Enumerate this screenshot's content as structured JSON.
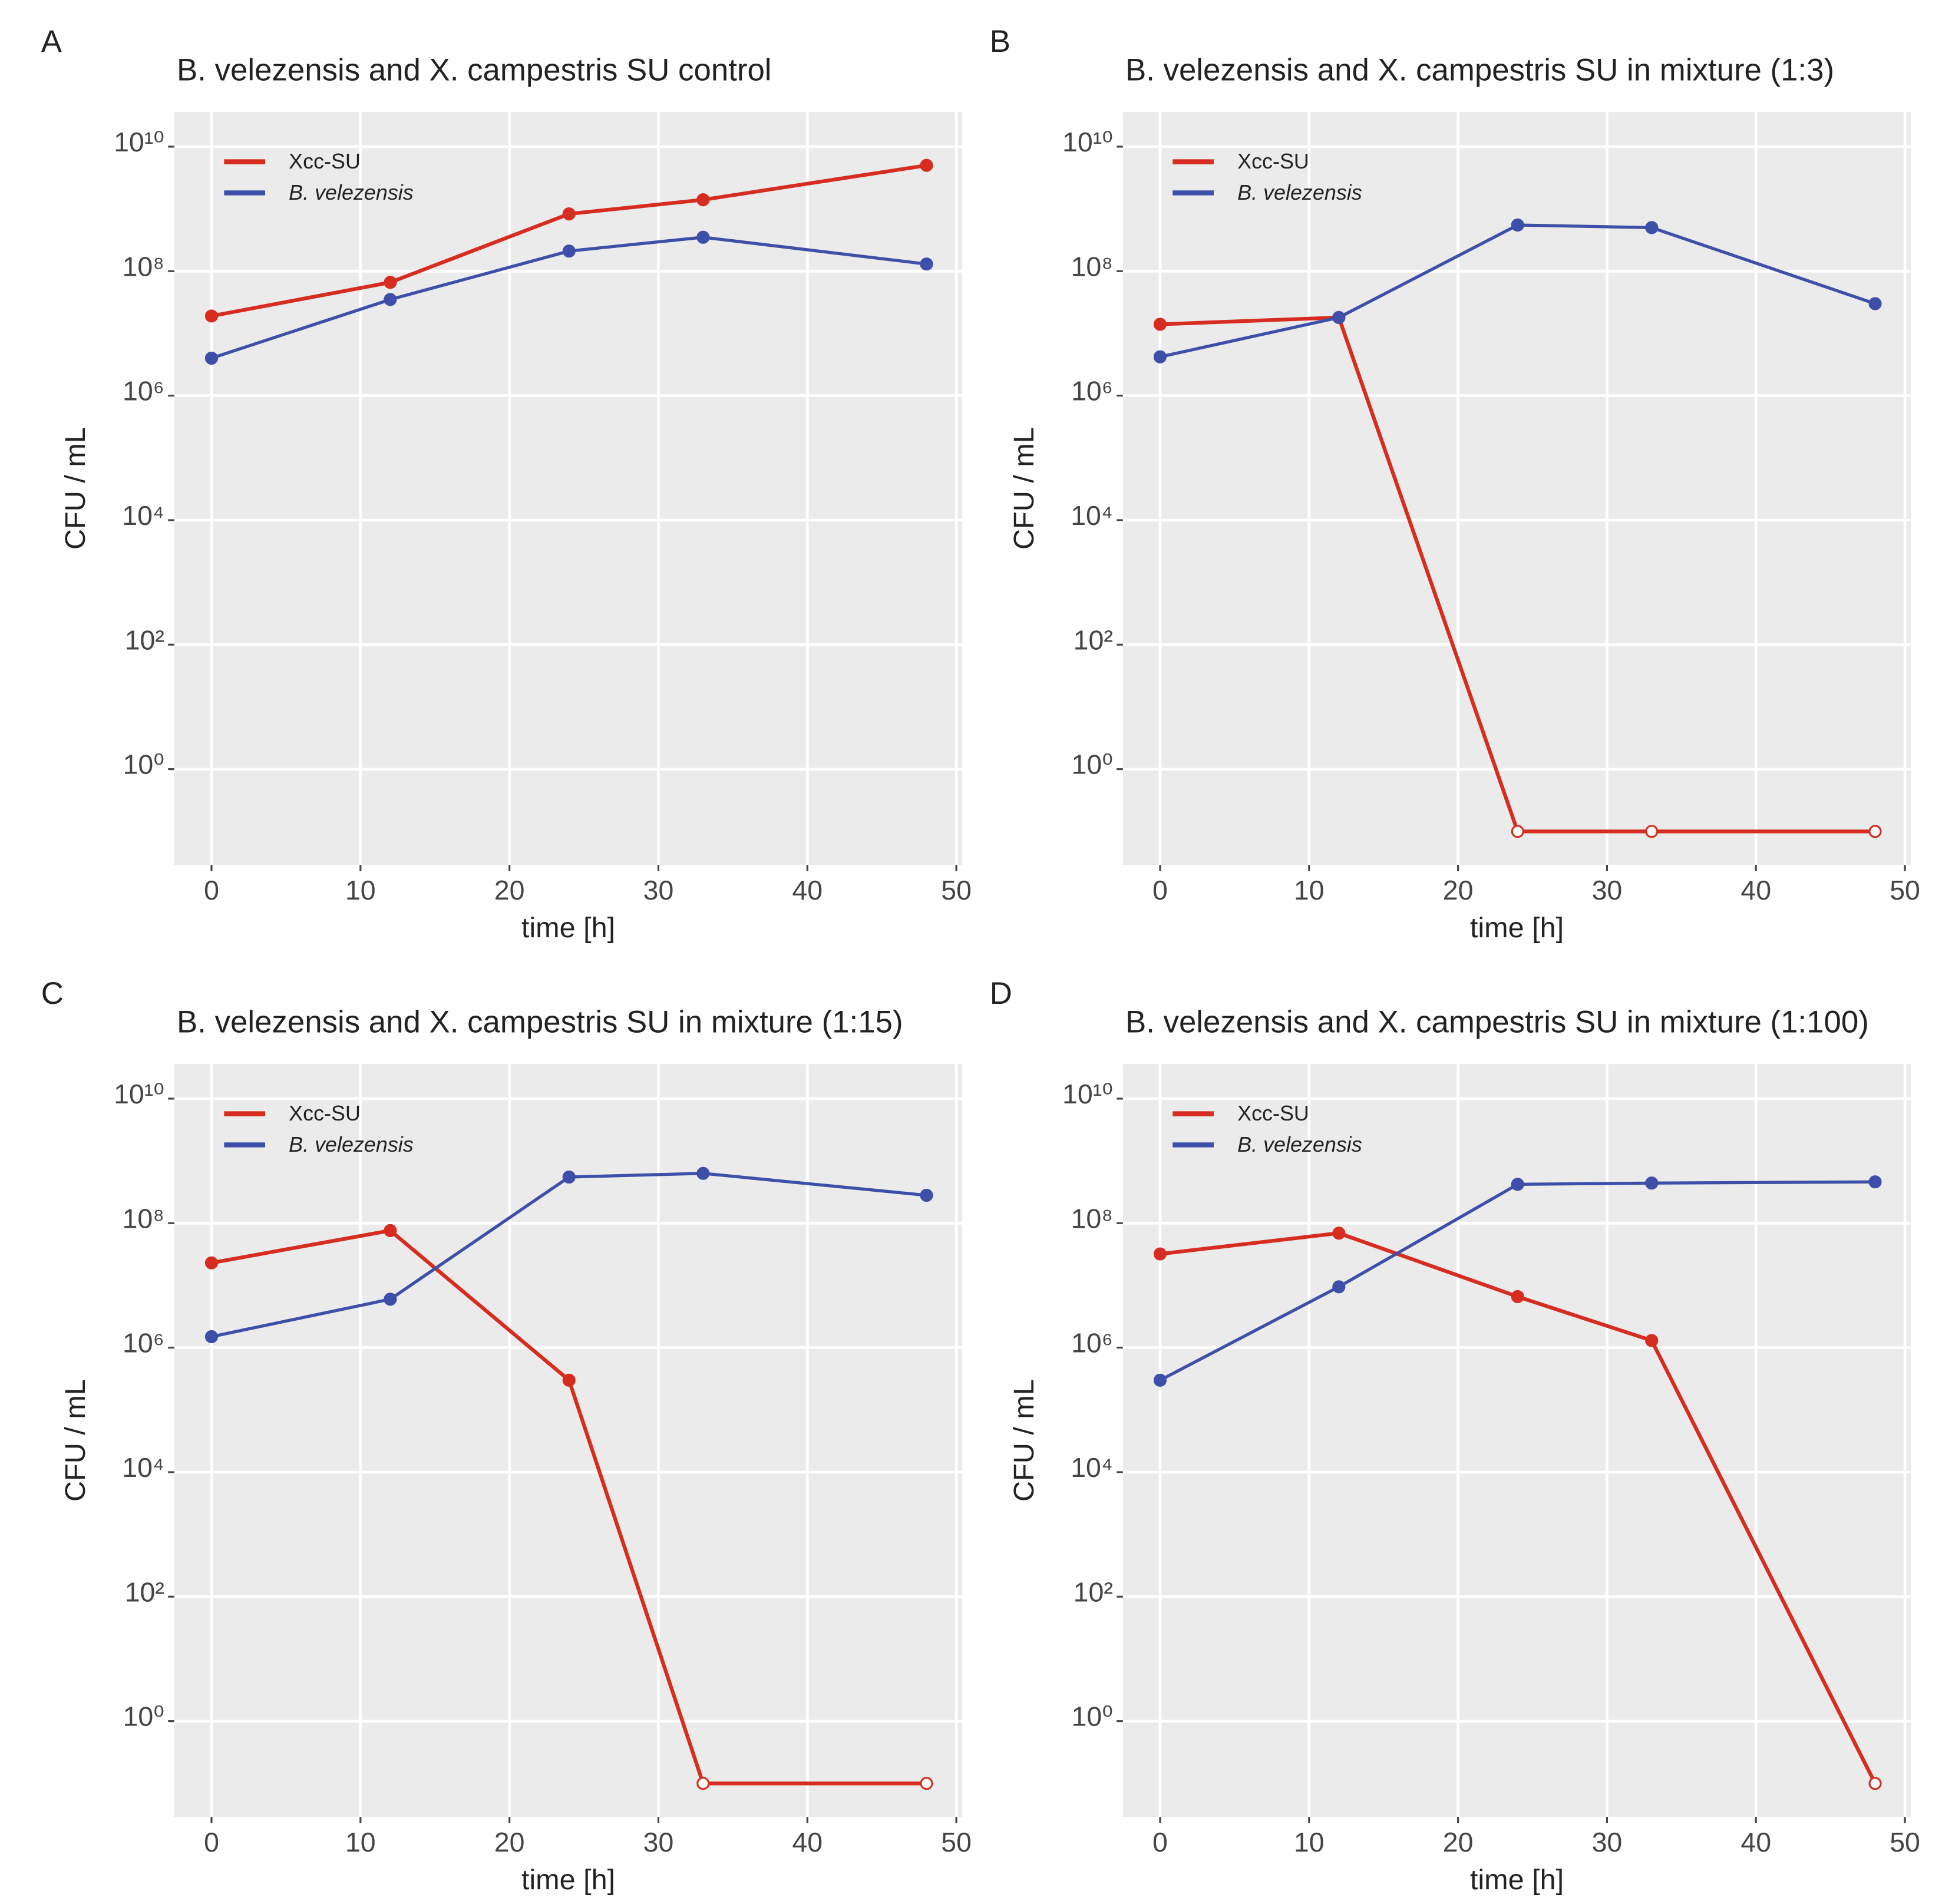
{
  "chart_data": [
    {
      "type": "line",
      "panel": "A",
      "title": "B. velezensis and X. campestris SU control",
      "x_label": "time [h]",
      "y_label": "CFU / mL",
      "x": [
        0,
        12,
        24,
        33,
        48
      ],
      "series": [
        {
          "name": "Xcc-SU",
          "color": "#d62d20",
          "values": [
            19000000,
            66000000,
            830000000,
            1400000000,
            5000000000
          ]
        },
        {
          "name": "B. velezensis",
          "color": "#3d4fa8",
          "values": [
            4000000,
            35000000,
            210000000,
            350000000,
            130000000
          ]
        }
      ],
      "xlim": [
        -2.5,
        50.4
      ],
      "xticks": [
        0,
        10,
        20,
        30,
        40,
        50
      ],
      "ylim": [
        0.029,
        36000000000
      ],
      "y_scale": "log",
      "yticks": [
        {
          "value": 1,
          "label": "10⁰"
        },
        {
          "value": 100,
          "label": "10²"
        },
        {
          "value": 10000,
          "label": "10⁴"
        },
        {
          "value": 1000000,
          "label": "10⁶"
        },
        {
          "value": 100000000,
          "label": "10⁸"
        },
        {
          "value": 10000000000,
          "label": "10¹⁰"
        }
      ],
      "grid": true,
      "legend": "top-left"
    },
    {
      "type": "line",
      "panel": "B",
      "title": "B. velezensis and X. campestris SU in mixture (1:3)",
      "x_label": "time [h]",
      "y_label": "CFU / mL",
      "x": [
        0,
        12,
        24,
        33,
        48
      ],
      "series": [
        {
          "name": "Xcc-SU",
          "color": "#d62d20",
          "values": [
            14000000,
            18000000,
            0.1,
            0.1,
            0.1
          ]
        },
        {
          "name": "B. velezensis",
          "color": "#3d4fa8",
          "values": [
            4200000,
            18000000,
            550000000,
            500000000,
            30000000
          ]
        }
      ],
      "xlim": [
        -2.5,
        50.4
      ],
      "xticks": [
        0,
        10,
        20,
        30,
        40,
        50
      ],
      "ylim": [
        0.029,
        36000000000
      ],
      "y_scale": "log",
      "yticks": [
        {
          "value": 1,
          "label": "10⁰"
        },
        {
          "value": 100,
          "label": "10²"
        },
        {
          "value": 10000,
          "label": "10⁴"
        },
        {
          "value": 1000000,
          "label": "10⁶"
        },
        {
          "value": 100000000,
          "label": "10⁸"
        },
        {
          "value": 10000000000,
          "label": "10¹⁰"
        }
      ],
      "grid": true,
      "legend": "top-left"
    },
    {
      "type": "line",
      "panel": "C",
      "title": "B. velezensis and X. campestris SU in mixture (1:15)",
      "x_label": "time [h]",
      "y_label": "CFU / mL",
      "x": [
        0,
        12,
        24,
        33,
        48
      ],
      "series": [
        {
          "name": "Xcc-SU",
          "color": "#d62d20",
          "values": [
            23000000,
            76000000,
            300000,
            0.1,
            0.1
          ]
        },
        {
          "name": "B. velezensis",
          "color": "#3d4fa8",
          "values": [
            1500000,
            6000000,
            550000000,
            630000000,
            280000000
          ]
        }
      ],
      "xlim": [
        -2.5,
        50.4
      ],
      "xticks": [
        0,
        10,
        20,
        30,
        40,
        50
      ],
      "ylim": [
        0.029,
        36000000000
      ],
      "y_scale": "log",
      "yticks": [
        {
          "value": 1,
          "label": "10⁰"
        },
        {
          "value": 100,
          "label": "10²"
        },
        {
          "value": 10000,
          "label": "10⁴"
        },
        {
          "value": 1000000,
          "label": "10⁶"
        },
        {
          "value": 100000000,
          "label": "10⁸"
        },
        {
          "value": 10000000000,
          "label": "10¹⁰"
        }
      ],
      "grid": true,
      "legend": "top-left"
    },
    {
      "type": "line",
      "panel": "D",
      "title": "B. velezensis and X. campestris SU in mixture (1:100)",
      "x_label": "time [h]",
      "y_label": "CFU / mL",
      "x": [
        0,
        12,
        24,
        33,
        48
      ],
      "series": [
        {
          "name": "Xcc-SU",
          "color": "#d62d20",
          "values": [
            32000000,
            69000000,
            6600000,
            1300000,
            0.1
          ]
        },
        {
          "name": "B. velezensis",
          "color": "#3d4fa8",
          "values": [
            300000,
            9500000,
            420000000,
            440000000,
            460000000
          ]
        }
      ],
      "xlim": [
        -2.5,
        50.4
      ],
      "xticks": [
        0,
        10,
        20,
        30,
        40,
        50
      ],
      "ylim": [
        0.029,
        36000000000
      ],
      "y_scale": "log",
      "yticks": [
        {
          "value": 1,
          "label": "10⁰"
        },
        {
          "value": 100,
          "label": "10²"
        },
        {
          "value": 10000,
          "label": "10⁴"
        },
        {
          "value": 1000000,
          "label": "10⁶"
        },
        {
          "value": 100000000,
          "label": "10⁸"
        },
        {
          "value": 10000000000,
          "label": "10¹⁰"
        }
      ],
      "grid": true,
      "legend": "top-left"
    }
  ]
}
